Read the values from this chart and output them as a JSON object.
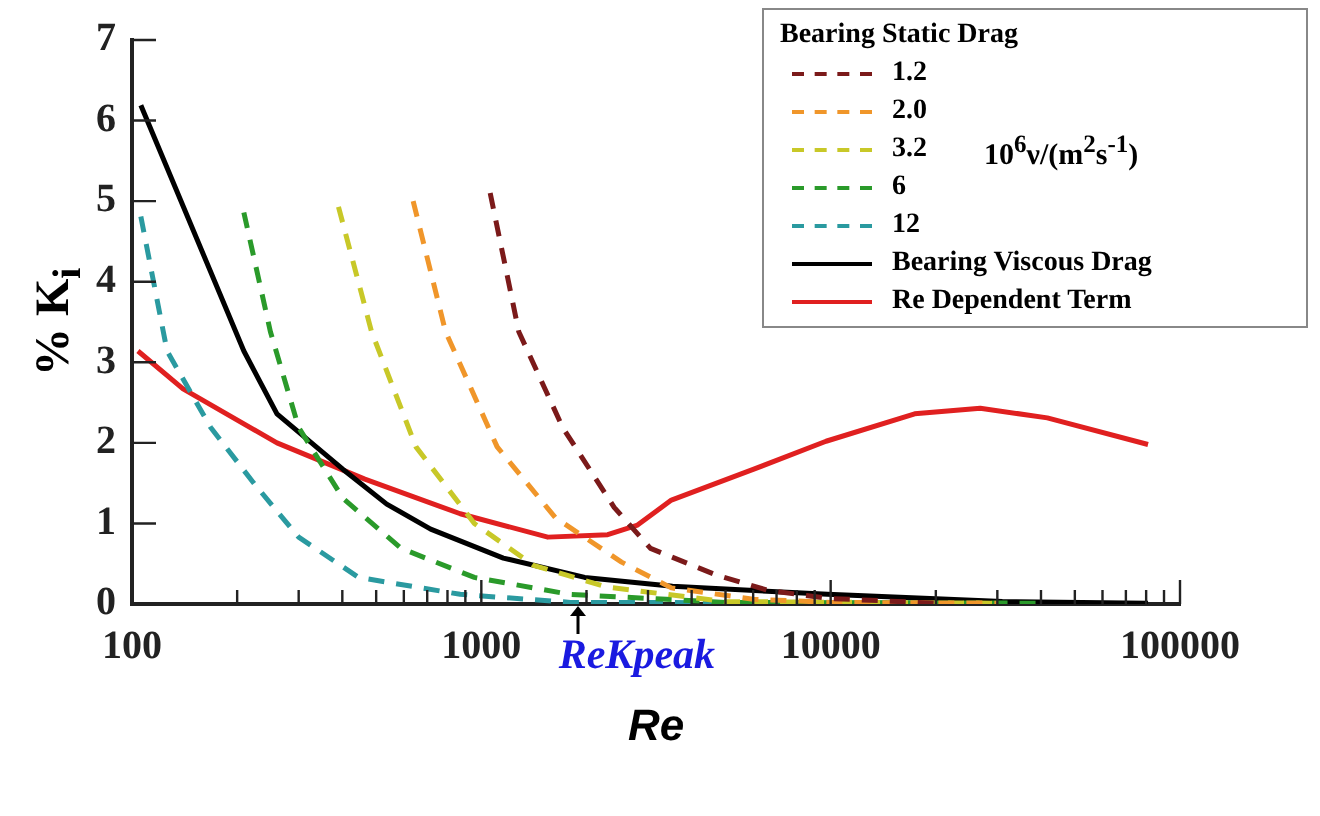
{
  "chart_data": {
    "type": "line",
    "xlabel": "Re",
    "ylabel": "% K$_{i}$",
    "legend_title": "Bearing Static Drag",
    "log": "x",
    "legend": "top right",
    "grid": false,
    "marker": "none",
    "xlim": [
      100,
      100000
    ],
    "ylim": [
      0,
      7
    ],
    "xticks": [
      100,
      {
        "value": 200,
        "label": null
      },
      {
        "value": 300,
        "label": null
      },
      {
        "value": 400,
        "label": null
      },
      {
        "value": 500,
        "label": null
      },
      {
        "value": 600,
        "label": null
      },
      {
        "value": 700,
        "label": null
      },
      {
        "value": 800,
        "label": null
      },
      {
        "value": 900,
        "label": null
      },
      1000,
      {
        "value": 2000,
        "label": null
      },
      {
        "value": 3000,
        "label": null
      },
      {
        "value": 4000,
        "label": null
      },
      {
        "value": 5000,
        "label": null
      },
      {
        "value": 6000,
        "label": null
      },
      {
        "value": 7000,
        "label": null
      },
      {
        "value": 8000,
        "label": null
      },
      {
        "value": 9000,
        "label": null
      },
      10000,
      {
        "value": 20000,
        "label": null
      },
      {
        "value": 30000,
        "label": null
      },
      {
        "value": 40000,
        "label": null
      },
      {
        "value": 50000,
        "label": null
      },
      {
        "value": 60000,
        "label": null
      },
      {
        "value": 70000,
        "label": null
      },
      {
        "value": 80000,
        "label": null
      },
      {
        "value": 90000,
        "label": null
      },
      100000
    ],
    "yticks": [
      0,
      1,
      2,
      3,
      4,
      5,
      6,
      7
    ],
    "annotations": [
      "10$^{6}$ν/(m$^{2}$s$^{-1}$)",
      {
        "text": "ReKpeak",
        "x": 1900,
        "y": 0
      }
    ],
    "series": [
      {
        "name": "1.2",
        "color": "#7b1a1a",
        "line_style": "dashed",
        "x": [
          1060,
          1280,
          1710,
          2400,
          3050,
          4700,
          6600,
          9800,
          20000
        ],
        "values": [
          5.1,
          3.38,
          2.19,
          1.2,
          0.69,
          0.36,
          0.17,
          0.07,
          0.01
        ]
      },
      {
        "name": "2.0",
        "color": "#f0962a",
        "line_style": "dashed",
        "x": [
          638,
          790,
          1110,
          1630,
          2520,
          3500,
          6000,
          10000,
          30000
        ],
        "values": [
          5.0,
          3.38,
          1.95,
          1.07,
          0.52,
          0.2,
          0.06,
          0.02,
          0.01
        ]
      },
      {
        "name": "3.2",
        "color": "#c8c828",
        "line_style": "dashed",
        "x": [
          390,
          485,
          650,
          955,
          1410,
          2290,
          5000,
          30000
        ],
        "values": [
          4.93,
          3.38,
          1.95,
          1.0,
          0.48,
          0.21,
          0.03,
          0.01
        ]
      },
      {
        "name": "6",
        "color": "#2a9a2a",
        "line_style": "dashed",
        "x": [
          209,
          249,
          300,
          402,
          590,
          955,
          1790,
          5000,
          40000
        ],
        "values": [
          4.86,
          3.38,
          2.19,
          1.31,
          0.69,
          0.33,
          0.12,
          0.02,
          0.01
        ]
      },
      {
        "name": "12",
        "color": "#2a9aa0",
        "line_style": "dashed",
        "x": [
          106,
          126,
          168,
          225,
          300,
          445,
          870,
          1800,
          20000
        ],
        "values": [
          4.81,
          3.14,
          2.19,
          1.48,
          0.83,
          0.33,
          0.12,
          0.02,
          0.01
        ]
      },
      {
        "name": "Bearing Viscous Drag",
        "color": "#000000",
        "line_style": "solid",
        "x": [
          106,
          209,
          260,
          402,
          536,
          716,
          1156,
          1977,
          3525,
          9800,
          31000,
          81000
        ],
        "values": [
          6.19,
          3.14,
          2.36,
          1.67,
          1.24,
          0.93,
          0.57,
          0.33,
          0.22,
          0.12,
          0.03,
          0.01
        ]
      },
      {
        "name": "Re Dependent Term",
        "color": "#e02020",
        "line_style": "solid",
        "x": [
          104,
          140,
          260,
          464,
          870,
          1550,
          2300,
          2800,
          3500,
          6000,
          9700,
          17400,
          26800,
          41700,
          81000
        ],
        "values": [
          3.14,
          2.67,
          2.0,
          1.55,
          1.12,
          0.83,
          0.86,
          0.98,
          1.29,
          1.67,
          2.02,
          2.36,
          2.43,
          2.31,
          1.98
        ]
      }
    ]
  }
}
